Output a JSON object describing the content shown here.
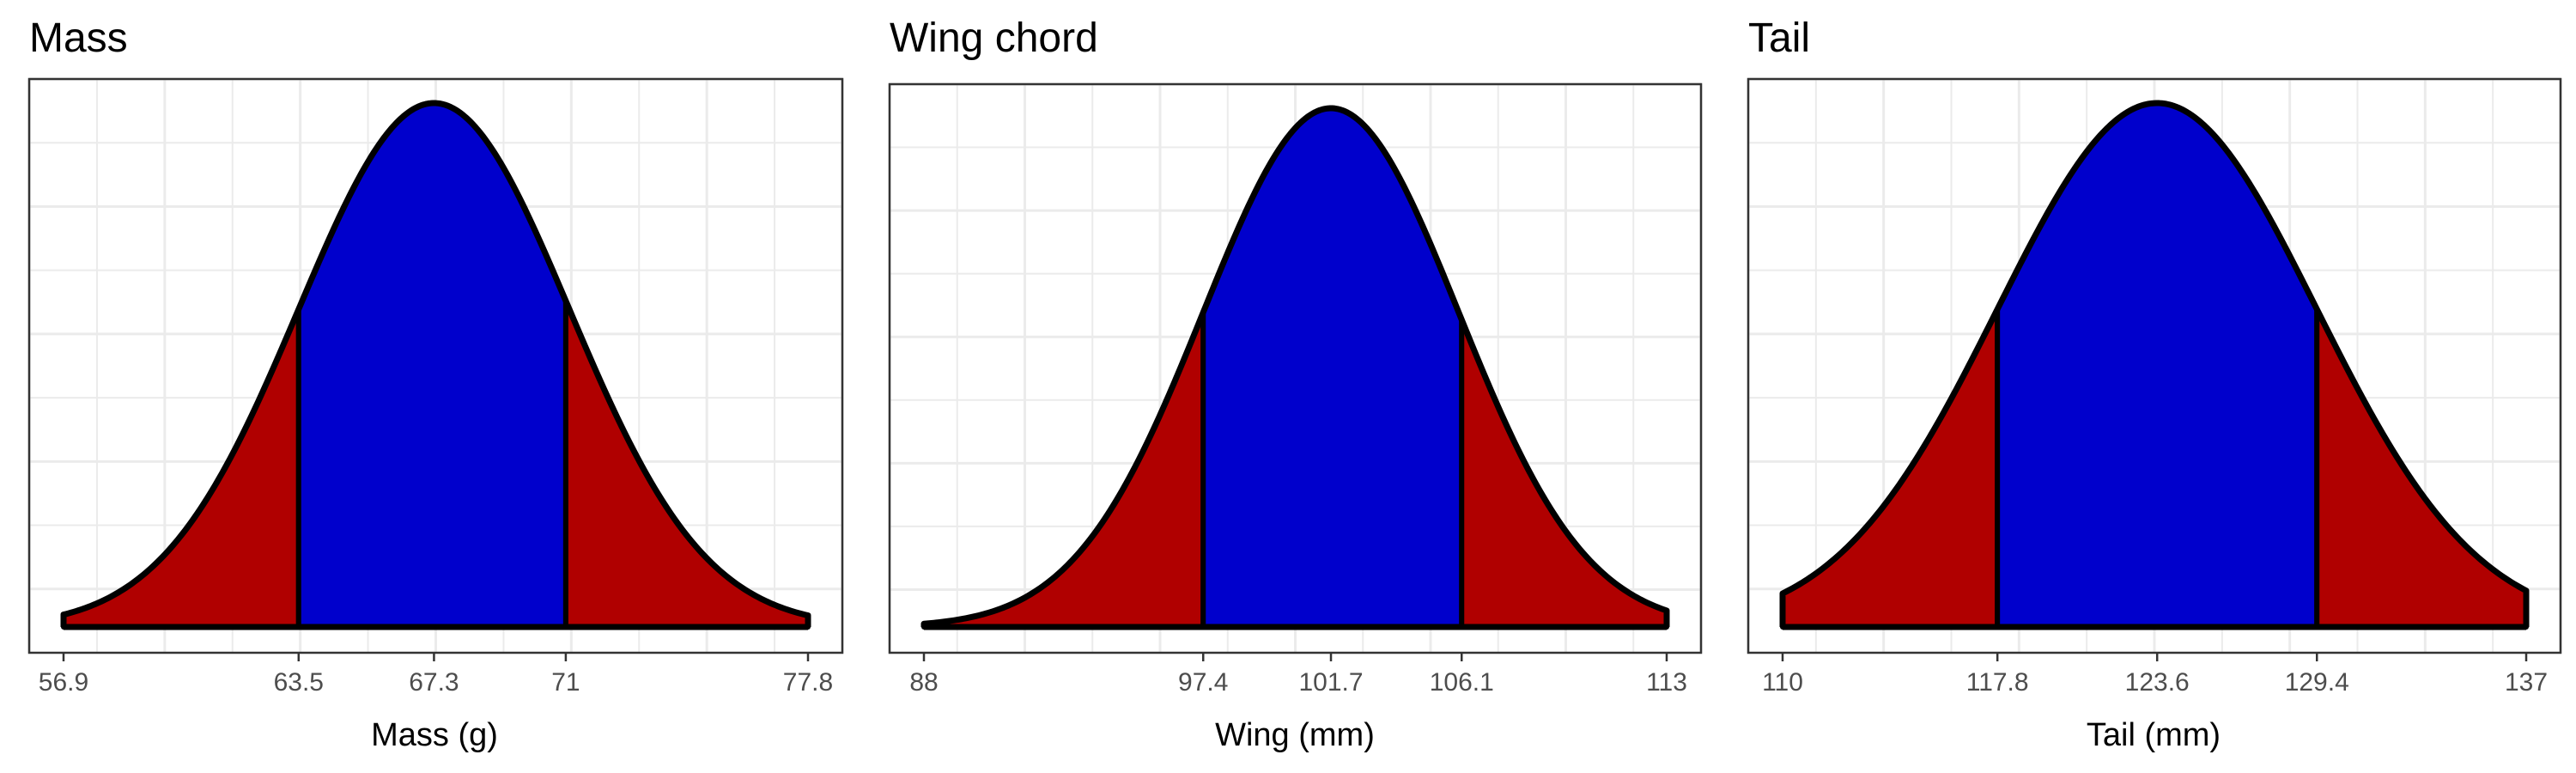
{
  "chart_data": [
    {
      "type": "area",
      "title": "Mass",
      "xlabel": "Mass (g)",
      "ylabel": "",
      "distribution": "normal",
      "mean": 67.3,
      "sd": 3.8,
      "xlim": [
        56.9,
        77.8
      ],
      "x_ticks": [
        56.9,
        63.5,
        67.3,
        71,
        77.8
      ],
      "tick_labels": [
        "56.9",
        "63.5",
        "67.3",
        "71",
        "77.8"
      ],
      "inner_interval": [
        63.5,
        71
      ],
      "colors": {
        "tails": "#b00000",
        "center": "#0000cc",
        "outline": "#000000"
      },
      "grid": true
    },
    {
      "type": "area",
      "title": "Wing chord",
      "xlabel": "Wing (mm)",
      "ylabel": "",
      "distribution": "normal",
      "mean": 101.7,
      "sd": 4.3,
      "xlim": [
        88,
        113
      ],
      "x_ticks": [
        88,
        97.4,
        101.7,
        106.1,
        113
      ],
      "tick_labels": [
        "88",
        "97.4",
        "101.7",
        "106.1",
        "113"
      ],
      "inner_interval": [
        97.4,
        106.1
      ],
      "colors": {
        "tails": "#b00000",
        "center": "#0000cc",
        "outline": "#000000"
      },
      "grid": true
    },
    {
      "type": "area",
      "title": "Tail",
      "xlabel": "Tail (mm)",
      "ylabel": "",
      "distribution": "normal",
      "mean": 123.6,
      "sd": 5.8,
      "xlim": [
        110,
        137
      ],
      "x_ticks": [
        110,
        117.8,
        123.6,
        129.4,
        137
      ],
      "tick_labels": [
        "110",
        "117.8",
        "123.6",
        "129.4",
        "137"
      ],
      "inner_interval": [
        117.8,
        129.4
      ],
      "colors": {
        "tails": "#b00000",
        "center": "#0000cc",
        "outline": "#000000"
      },
      "grid": true
    }
  ]
}
